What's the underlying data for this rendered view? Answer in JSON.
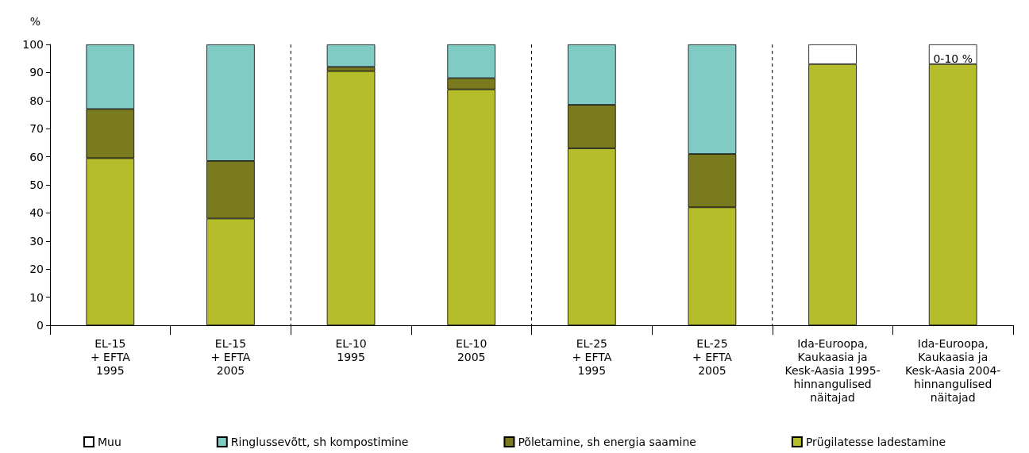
{
  "chart_data": {
    "type": "bar",
    "stacked": true,
    "ylabel": "%",
    "categories": [
      "EL-15\n+ EFTA\n1995",
      "EL-15\n+ EFTA\n2005",
      "EL-10\n1995",
      "EL-10\n2005",
      "EL-25\n+ EFTA\n1995",
      "EL-25\n+ EFTA\n2005",
      "Ida-Euroopa,\nKaukaasia ja\nKesk-Aasia 1995-\nhinnangulised\nnäitajad",
      "Ida-Euroopa,\nKaukaasia ja\nKesk-Aasia 2004-\nhinnangulised\nnäitajad"
    ],
    "series": [
      {
        "name": "Prügilatesse ladestamine",
        "color": "#b5bd2a",
        "values": [
          59.5,
          38,
          90.5,
          84,
          63,
          42,
          93,
          93
        ]
      },
      {
        "name": "Põletamine, sh energia saamine",
        "color": "#7a7b1f",
        "values": [
          17.5,
          20.5,
          1.5,
          4,
          15.5,
          19,
          null,
          null
        ]
      },
      {
        "name": "Ringlussevõtt, sh kompostimine",
        "color": "#81cbc5",
        "values": [
          23,
          41.5,
          8,
          12,
          21.5,
          39,
          null,
          null
        ]
      },
      {
        "name": "Muu",
        "color": "#ffffff",
        "values": [
          null,
          null,
          null,
          null,
          null,
          null,
          7,
          7
        ]
      }
    ],
    "ylim": [
      0,
      100
    ],
    "yticks": [
      0,
      10,
      20,
      30,
      40,
      50,
      60,
      70,
      80,
      90,
      100
    ],
    "grid": false,
    "legend": "bottom",
    "annotations": [
      "0-10 %"
    ]
  }
}
